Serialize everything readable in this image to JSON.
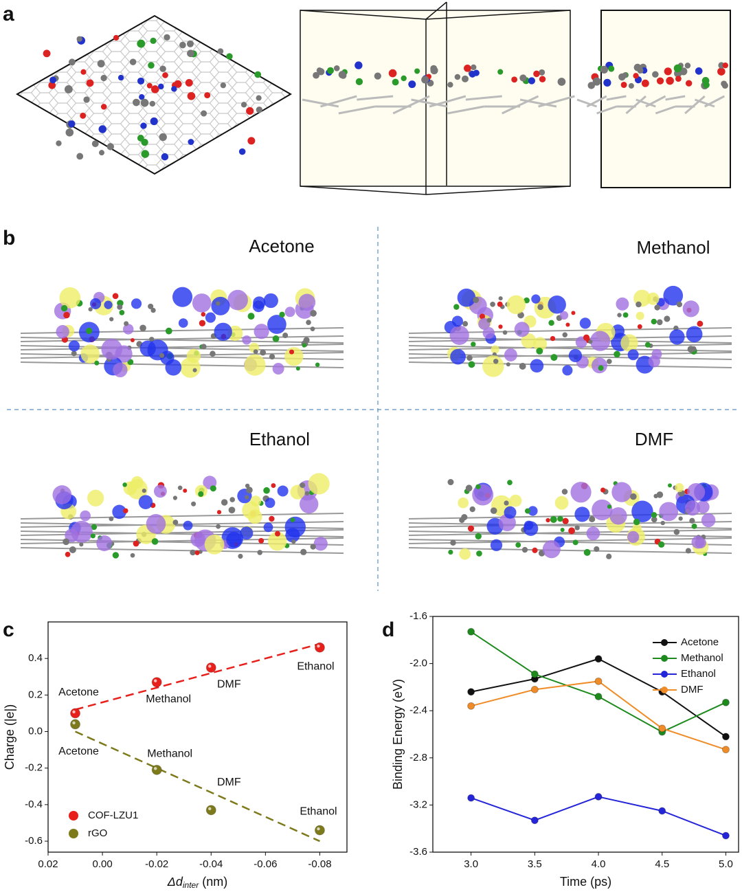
{
  "panel_labels": [
    "a",
    "b",
    "c",
    "d"
  ],
  "panel_b_labels": [
    "Acetone",
    "Methanol",
    "Ethanol",
    "DMF"
  ],
  "chart_data": [
    {
      "type": "scatter",
      "x_label": {
        "symbol": "Δd",
        "subscript": "inter",
        "unit": "(nm)"
      },
      "y_label": "Charge (|e|)",
      "xlim": [
        0.02,
        -0.09
      ],
      "ylim": [
        -0.66,
        0.6
      ],
      "xticks": [
        0.02,
        {
          "value": 0,
          "label": "0.00"
        },
        -0.02,
        -0.04,
        -0.06,
        -0.08
      ],
      "yticks": [
        -0.6,
        -0.4,
        -0.2,
        {
          "value": 0,
          "label": "0.0"
        },
        0.2,
        0.4
      ],
      "legend": "lower left",
      "series": [
        {
          "name": "COF-LZU1",
          "color": "#e8201c",
          "x": [
            0.01,
            -0.02,
            -0.04,
            -0.08
          ],
          "values": [
            0.1,
            0.27,
            0.35,
            0.46
          ],
          "point_labels": [
            "Acetone",
            "Methanol",
            "DMF",
            "Ethanol"
          ]
        },
        {
          "name": "rGO",
          "color": "#7d7a1c",
          "x": [
            0.01,
            -0.02,
            -0.04,
            -0.08
          ],
          "values": [
            0.04,
            -0.21,
            -0.43,
            -0.54
          ],
          "point_labels": [
            "Acetone",
            "Methanol",
            "DMF",
            "Ethanol"
          ]
        }
      ],
      "fit_lines": [
        {
          "color": "#e8201c",
          "x": [
            0.01,
            -0.08
          ],
          "y": [
            0.12,
            0.48
          ]
        },
        {
          "color": "#7d7a1c",
          "x": [
            0.01,
            -0.08
          ],
          "y": [
            0.0,
            -0.6
          ]
        }
      ]
    },
    {
      "type": "line",
      "x_label": "Time (ps)",
      "y_label": "Binding Energy (eV)",
      "x": [
        3.0,
        3.5,
        4.0,
        4.5,
        5.0
      ],
      "xlim": [
        2.7,
        5.1
      ],
      "ylim": [
        -3.6,
        -1.6
      ],
      "xticks": [
        {
          "value": 3,
          "label": "3.0"
        },
        3.5,
        {
          "value": 4,
          "label": "4.0"
        },
        4.5,
        {
          "value": 5,
          "label": "5.0"
        }
      ],
      "yticks": [
        -1.6,
        {
          "value": -2,
          "label": "-2.0"
        },
        -2.4,
        -2.8,
        -3.2,
        -3.6
      ],
      "legend": "upper right",
      "series": [
        {
          "name": "Acetone",
          "color": "#111111",
          "values": [
            -2.24,
            -2.13,
            -1.96,
            -2.24,
            -2.62
          ]
        },
        {
          "name": "Methanol",
          "color": "#1e8a1e",
          "values": [
            -1.73,
            -2.09,
            -2.28,
            -2.58,
            -2.33
          ]
        },
        {
          "name": "Ethanol",
          "color": "#2424d8",
          "values": [
            -3.14,
            -3.33,
            -3.13,
            -3.25,
            -3.46
          ]
        },
        {
          "name": "DMF",
          "color": "#f08c28",
          "values": [
            -2.36,
            -2.22,
            -2.15,
            -2.55,
            -2.73
          ]
        }
      ]
    }
  ]
}
